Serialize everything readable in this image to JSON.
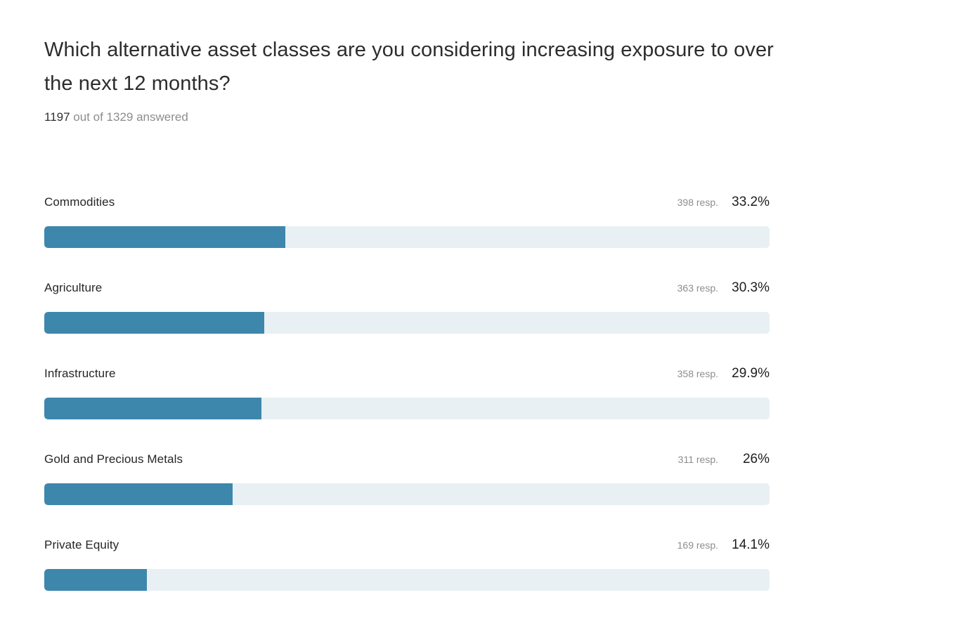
{
  "page": {
    "title": "Which alternative asset classes are you considering increasing exposure to over\nthe next 12 months?",
    "answered_count": "1197",
    "answered_suffix": " out of 1329 answered"
  },
  "colors": {
    "bar_fill": "#3d87ac",
    "bar_track": "#e9f0f4",
    "title_text": "#2d2d2d",
    "muted_text": "#8d8d8d"
  },
  "chart_data": {
    "type": "bar",
    "orientation": "horizontal",
    "title": "Which alternative asset classes are you considering increasing exposure to over the next 12 months?",
    "subtitle": "1197 out of 1329 answered",
    "answered": 1197,
    "total_invited": 1329,
    "categories": [
      "Commodities",
      "Agriculture",
      "Infrastructure",
      "Gold and Precious Metals",
      "Private Equity"
    ],
    "series": [
      {
        "name": "respondents",
        "values": [
          398,
          363,
          358,
          311,
          169
        ]
      },
      {
        "name": "percent",
        "values": [
          33.2,
          30.3,
          29.9,
          26,
          14.1
        ]
      }
    ],
    "value_labels": [
      "398 resp.",
      "363 resp.",
      "358 resp.",
      "311 resp.",
      "169 resp."
    ],
    "percent_labels": [
      "33.2%",
      "30.3%",
      "29.9%",
      "26%",
      "14.1%"
    ],
    "xlabel": "",
    "ylabel": "",
    "x_range_percent": [
      0,
      100
    ],
    "grid": false,
    "legend": false
  },
  "rows": [
    {
      "label": "Commodities",
      "responses": "398 resp.",
      "percent_label": "33.2%",
      "percent": 33.2
    },
    {
      "label": "Agriculture",
      "responses": "363 resp.",
      "percent_label": "30.3%",
      "percent": 30.3
    },
    {
      "label": "Infrastructure",
      "responses": "358 resp.",
      "percent_label": "29.9%",
      "percent": 29.9
    },
    {
      "label": "Gold and Precious Metals",
      "responses": "311 resp.",
      "percent_label": "26%",
      "percent": 26
    },
    {
      "label": "Private Equity",
      "responses": "169 resp.",
      "percent_label": "14.1%",
      "percent": 14.1
    }
  ]
}
